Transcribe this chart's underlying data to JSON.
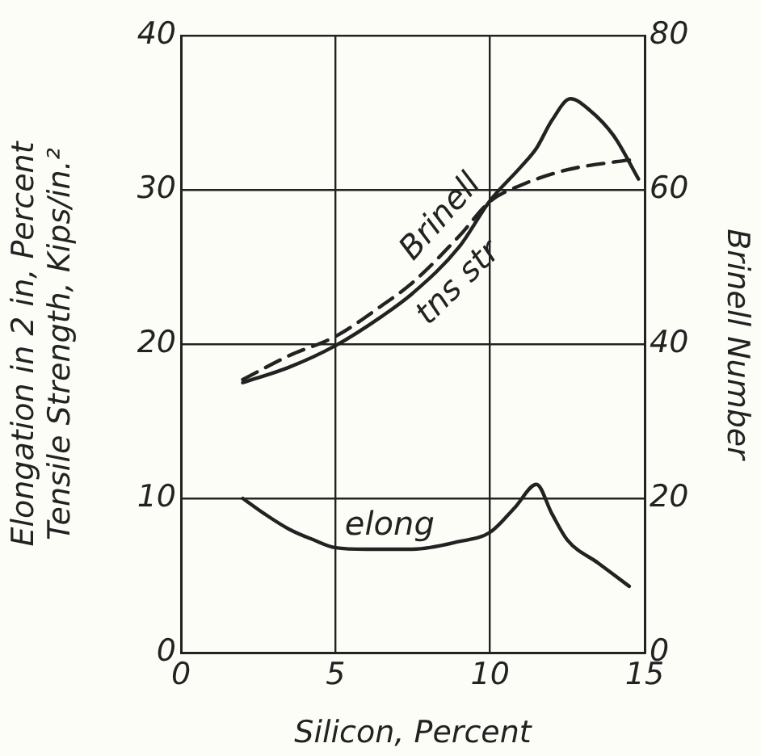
{
  "chart_data": {
    "type": "line",
    "xlabel": "Silicon, Percent",
    "ylabel": "Elongation in 2 in, Percent\nTensile Strength, Kips/in.²",
    "y2label": "Brinell Number",
    "xlim": [
      0,
      15
    ],
    "xticks": [
      0,
      5,
      10,
      15
    ],
    "ylim": [
      0,
      40
    ],
    "yticks": [
      0,
      10,
      20,
      30,
      40
    ],
    "y2lim": [
      0,
      80
    ],
    "y2ticks": [
      0,
      20,
      40,
      60,
      80
    ],
    "grid": true,
    "legend": false,
    "marker": "none",
    "series": [
      {
        "name": "tns str",
        "color": "#222222",
        "line_style": "solid",
        "x": [
          2,
          3.5,
          5,
          6.5,
          7.5,
          9,
          10,
          11,
          11.5,
          12,
          12.6,
          13.2,
          14,
          14.8
        ],
        "values": [
          17.5,
          18.5,
          19.9,
          21.8,
          23.3,
          26.3,
          29.3,
          31.5,
          32.7,
          34.5,
          35.9,
          35.2,
          33.5,
          30.7
        ]
      },
      {
        "name": "Brinell",
        "color": "#222222",
        "line_style": "dashed",
        "axis": "y2",
        "x": [
          2,
          3.5,
          5,
          6.5,
          7.5,
          9,
          10,
          11,
          12.5,
          14,
          14.8
        ],
        "values": [
          35.4,
          38.5,
          41,
          45,
          48,
          54,
          58.5,
          60.6,
          62.6,
          63.6,
          64
        ]
      },
      {
        "name": "elong",
        "color": "#222222",
        "line_style": "solid",
        "x": [
          2,
          2.7,
          3.5,
          4.3,
          5,
          6,
          7.5,
          9,
          10,
          10.8,
          11.5,
          12,
          12.5,
          13.5,
          14.5
        ],
        "values": [
          10,
          9,
          8,
          7.3,
          6.8,
          6.7,
          6.7,
          7.2,
          7.8,
          9.4,
          10.9,
          9,
          7.3,
          5.8,
          4.3
        ]
      }
    ]
  }
}
